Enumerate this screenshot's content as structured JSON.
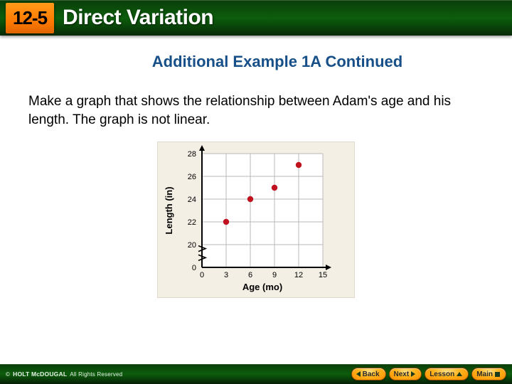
{
  "header": {
    "lesson_number": "12-5",
    "title": "Direct Variation"
  },
  "subtitle": "Additional Example 1A Continued",
  "body": "Make a graph that shows the relationship between Adam's age and his length. The graph is not linear.",
  "chart": {
    "type": "scatter",
    "background_color": "#f4efe5",
    "plot_bg": "#ffffff",
    "grid_color": "#b8b8b8",
    "axis_color": "#000000",
    "arrow_color": "#000000",
    "marker_color": "#c1121f",
    "marker_radius": 4.2,
    "xlabel": "Age (mo)",
    "ylabel": "Length (in)",
    "label_fontsize": 13,
    "label_fontweight": "700",
    "tick_fontsize": 11,
    "x_ticks": [
      0,
      3,
      6,
      9,
      12,
      15
    ],
    "y_ticks": [
      0,
      20,
      22,
      24,
      26,
      28
    ],
    "x_domain_start": 0,
    "x_domain_end": 15,
    "break_y_between": [
      0,
      20
    ],
    "points": [
      {
        "x": 3,
        "y": 22
      },
      {
        "x": 6,
        "y": 24
      },
      {
        "x": 9,
        "y": 25
      },
      {
        "x": 12,
        "y": 27
      }
    ]
  },
  "footer": {
    "publisher": "HOLT McDOUGAL",
    "rights": "All Rights Reserved",
    "nav": {
      "back": "Back",
      "next": "Next",
      "lesson": "Lesson",
      "main": "Main"
    }
  }
}
